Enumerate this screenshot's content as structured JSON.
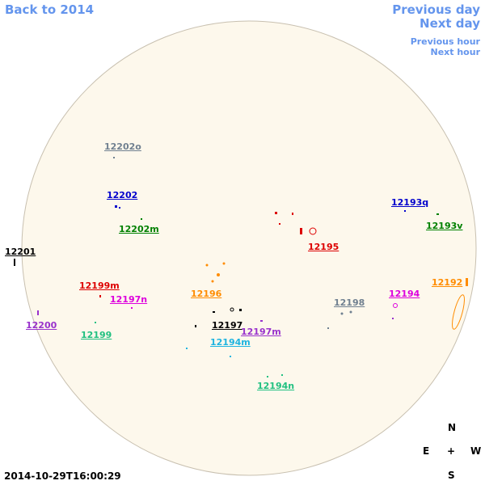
{
  "nav": {
    "back": "Back to 2014",
    "previous_day": "Previous day",
    "next_day": "Next day",
    "previous_hour": "Previous hour",
    "next_hour": "Next hour"
  },
  "timestamp": "2014-10-29T16:00:29",
  "compass": {
    "north": "N",
    "east": "E",
    "center": "+",
    "west": "W",
    "south": "S"
  },
  "regions": [
    {
      "label": "12202o",
      "color": "#708090"
    },
    {
      "label": "12202",
      "color": "#0000cc"
    },
    {
      "label": "12202m",
      "color": "#008000"
    },
    {
      "label": "12201",
      "color": "#000000"
    },
    {
      "label": "12199m",
      "color": "#dd0000"
    },
    {
      "label": "12197n",
      "color": "#dd00dd"
    },
    {
      "label": "12200",
      "color": "#9932cc"
    },
    {
      "label": "12199",
      "color": "#20c080"
    },
    {
      "label": "12196",
      "color": "#ff8c00"
    },
    {
      "label": "12197",
      "color": "#000000"
    },
    {
      "label": "12197m",
      "color": "#9932cc"
    },
    {
      "label": "12194m",
      "color": "#1eb4e0"
    },
    {
      "label": "12194n",
      "color": "#20c080"
    },
    {
      "label": "12195",
      "color": "#dd0000"
    },
    {
      "label": "12193q",
      "color": "#0000cc"
    },
    {
      "label": "12193v",
      "color": "#008000"
    },
    {
      "label": "12192",
      "color": "#ff8c00"
    },
    {
      "label": "12194",
      "color": "#dd00dd"
    },
    {
      "label": "12198",
      "color": "#708090"
    }
  ]
}
